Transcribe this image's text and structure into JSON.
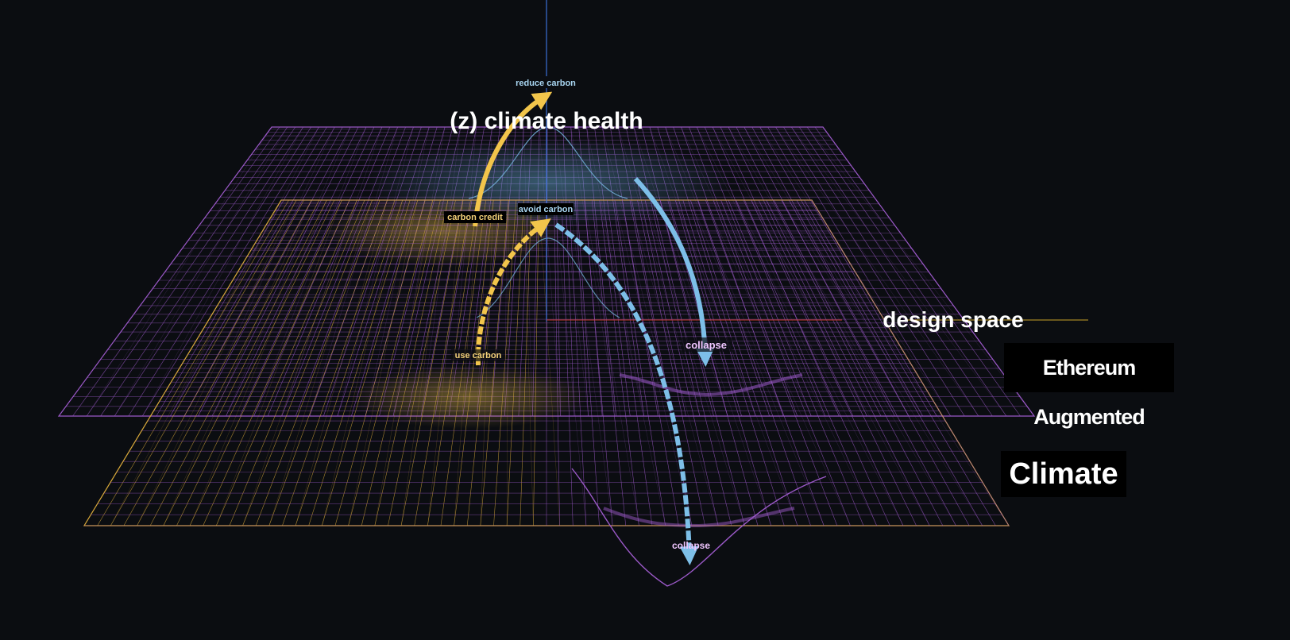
{
  "axis_labels": {
    "z": "(z) climate health",
    "plane": "design space"
  },
  "planes": [
    {
      "name": "Ethereum Augmented Climate"
    },
    {
      "name": "Climate"
    }
  ],
  "markers": {
    "reduce_carbon": "reduce carbon",
    "carbon_credit": "carbon credit",
    "avoid_carbon": "avoid carbon",
    "use_carbon": "use carbon",
    "collapse_upper": "collapse",
    "collapse_lower": "collapse"
  },
  "colors": {
    "background": "#0b0d11",
    "mesh_purple": "#9b59c8",
    "mesh_yellow": "#d9a93a",
    "mesh_blue": "#6fa9d0",
    "arrow_yellow": "#f2c54b",
    "arrow_blue": "#7dbfe8",
    "z_axis": "#3a6fd8",
    "x_axis": "#c0392b",
    "y_axis": "#c9a227"
  }
}
